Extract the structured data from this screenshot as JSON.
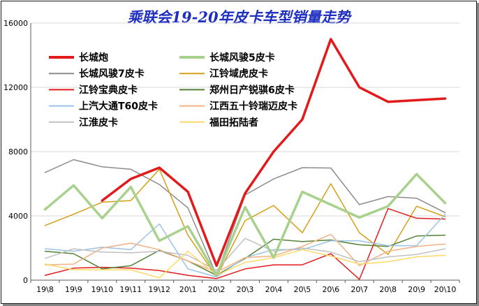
{
  "chart_data": {
    "type": "line",
    "title": "乘联会19-20年皮卡车型销量走势",
    "xlabel": "",
    "ylabel": "",
    "ylim": [
      0,
      16000
    ],
    "yticks": [
      "0",
      "4000",
      "8000",
      "12000",
      "16000"
    ],
    "grid": "horizontal",
    "legend_position": "top-left",
    "x": [
      "19\\8",
      "19\\9",
      "19\\10",
      "19\\11",
      "19\\12",
      "20\\1",
      "20\\2",
      "20\\3",
      "20\\4",
      "20\\5",
      "20\\6",
      "20\\7",
      "20\\8",
      "20\\9",
      "20\\10"
    ],
    "series": [
      {
        "name": "长城炮",
        "color": "#e31a1c",
        "width": 3.5,
        "values": [
          null,
          null,
          4950,
          6300,
          7000,
          5500,
          900,
          5400,
          8000,
          10000,
          15000,
          12000,
          11100,
          11200,
          11300
        ]
      },
      {
        "name": "长城风骏5皮卡",
        "color": "#a9d18e",
        "width": 3.5,
        "values": [
          4400,
          5900,
          3850,
          5800,
          2450,
          3350,
          300,
          4550,
          1400,
          5500,
          4700,
          3900,
          4600,
          6600,
          4800
        ]
      },
      {
        "name": "长城风骏7皮卡",
        "color": "#8c8c8c",
        "width": 1.5,
        "values": [
          6700,
          7500,
          7050,
          6900,
          5950,
          4500,
          300,
          5300,
          6300,
          7000,
          6980,
          4700,
          5200,
          5100,
          4200
        ]
      },
      {
        "name": "江铃域虎皮卡",
        "color": "#d4a017",
        "width": 1.5,
        "values": [
          3400,
          4100,
          4850,
          4950,
          6900,
          2800,
          200,
          3700,
          4650,
          2950,
          6000,
          2950,
          1600,
          4600,
          3950
        ]
      },
      {
        "name": "江铃宝典皮卡",
        "color": "#e31a1c",
        "width": 1.5,
        "values": [
          300,
          750,
          800,
          750,
          600,
          300,
          100,
          700,
          950,
          950,
          1650,
          50,
          4450,
          3850,
          3800
        ]
      },
      {
        "name": "郑州日产锐骐6皮卡",
        "color": "#548235",
        "width": 1.5,
        "values": [
          1800,
          1650,
          700,
          900,
          1850,
          1200,
          300,
          1350,
          2550,
          2400,
          2500,
          2200,
          2100,
          2750,
          2800
        ]
      },
      {
        "name": "上汽大通T60皮卡",
        "color": "#9dc3e6",
        "width": 1.5,
        "values": [
          1950,
          1800,
          2050,
          1900,
          3500,
          700,
          200,
          1400,
          1900,
          1900,
          2450,
          2450,
          2150,
          2150,
          4100
        ]
      },
      {
        "name": "江西五十铃瑞迈皮卡",
        "color": "#f4b183",
        "width": 1.5,
        "values": [
          950,
          1000,
          2000,
          2300,
          1900,
          1200,
          500,
          1400,
          1500,
          2100,
          2850,
          900,
          1800,
          2100,
          2250
        ]
      },
      {
        "name": "江淮皮卡",
        "color": "#c0c0c0",
        "width": 1.5,
        "values": [
          1350,
          1950,
          1750,
          1700,
          1800,
          1550,
          600,
          2600,
          1800,
          2000,
          1750,
          1150,
          1450,
          1600,
          1950
        ]
      },
      {
        "name": "福田拓陆者",
        "color": "#ffd966",
        "width": 1.5,
        "values": [
          1000,
          650,
          650,
          650,
          150,
          1800,
          300,
          1100,
          1400,
          1900,
          1500,
          1000,
          1150,
          1450,
          1550
        ]
      }
    ]
  }
}
